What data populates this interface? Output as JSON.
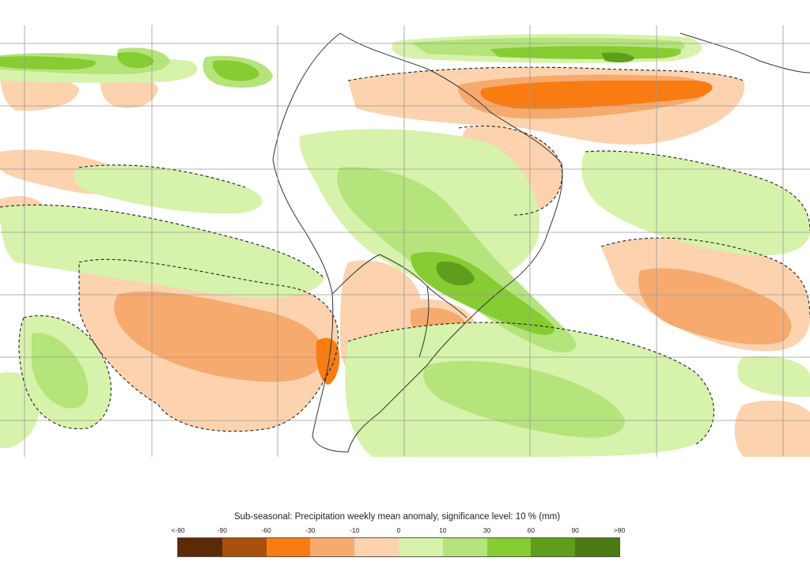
{
  "legend": {
    "title": "Sub-seasonal: Precipitation weekly mean anomaly, significance level: 10 % (mm)",
    "ticks": [
      "<-90",
      "-90",
      "-60",
      "-30",
      "-10",
      "0",
      "10",
      "30",
      "60",
      "90",
      ">90"
    ],
    "colors": [
      "#5c2a06",
      "#a8500e",
      "#f97c12",
      "#f7aa6e",
      "#fcd3ae",
      "#d7f2aa",
      "#b4e47b",
      "#86cc32",
      "#5e9e1c",
      "#4b7a12"
    ]
  },
  "map": {
    "region": "South America and surrounding oceans",
    "grid": true,
    "significance_contour": "dashed"
  }
}
